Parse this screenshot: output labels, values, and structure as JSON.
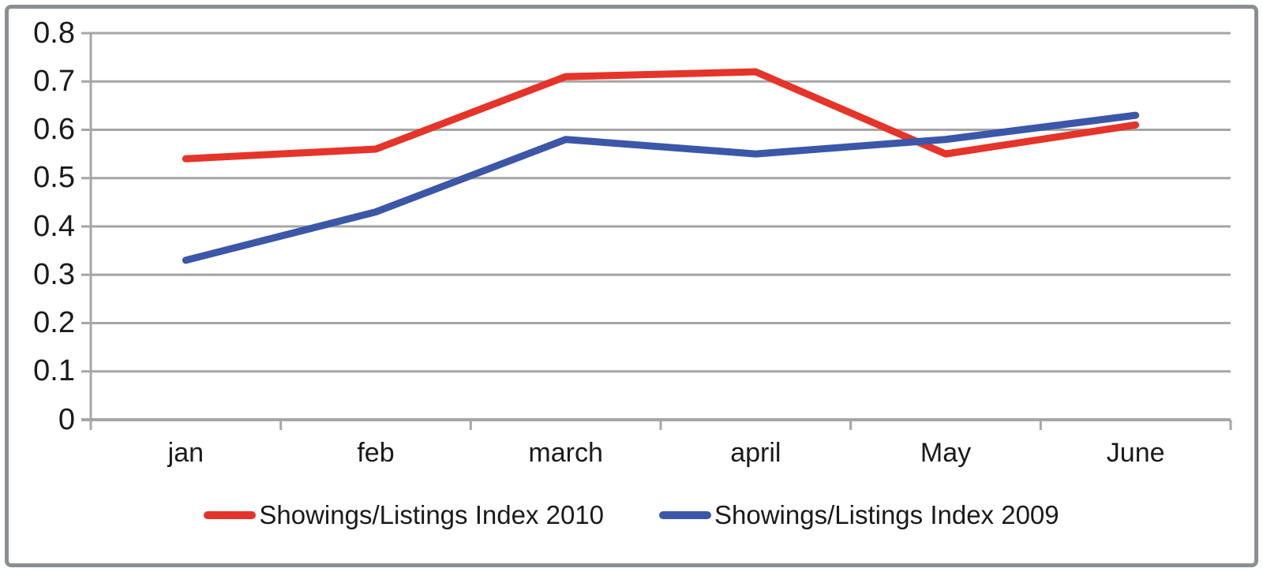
{
  "chart_data": {
    "type": "line",
    "title": "",
    "xlabel": "",
    "ylabel": "",
    "categories": [
      "jan",
      "feb",
      "march",
      "april",
      "May",
      "June"
    ],
    "series": [
      {
        "name": "Showings/Listings Index 2010",
        "color": "#e5342a",
        "values": [
          0.54,
          0.56,
          0.71,
          0.72,
          0.55,
          0.61
        ]
      },
      {
        "name": "Showings/Listings Index 2009",
        "color": "#3c57a8",
        "values": [
          0.33,
          0.43,
          0.58,
          0.55,
          0.58,
          0.63
        ]
      }
    ],
    "ylim": [
      0,
      0.8
    ],
    "ytick_labels": [
      "0",
      "0.1",
      "0.2",
      "0.3",
      "0.4",
      "0.5",
      "0.6",
      "0.7",
      "0.8"
    ],
    "grid": "horizontal",
    "legend_position": "bottom",
    "colors": {
      "gridline": "#a6a6a6",
      "axis": "#a6a6a6",
      "text": "#1a1a1a",
      "frame_border": "#8b8f92",
      "background": "#ffffff"
    }
  }
}
